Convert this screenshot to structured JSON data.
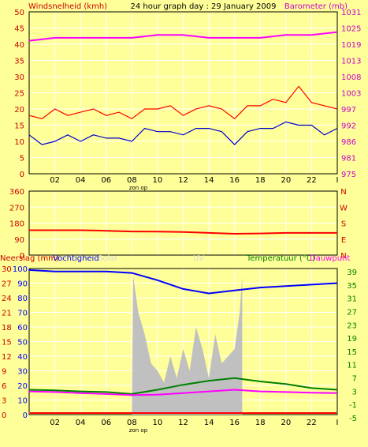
{
  "header": {
    "title": "24 hour graph day : 29 January 2009",
    "left_label": "Windsnelheid (kmh)",
    "right_label": "Barometer (mb)"
  },
  "colors": {
    "background": "#ffff99",
    "panel": "#ffff99",
    "grid": "#ffffff",
    "wind": "#ff0000",
    "wind_avg": "#0000cc",
    "barometer": "#ff00ff",
    "direction": "#ff0000",
    "humidity": "#0000ff",
    "temperature": "#008000",
    "dewpoint": "#ff00ff",
    "solar": "#c0c0c0",
    "rain": "#ff0000",
    "left_axis_text": "#cc0000",
    "right_axis_text": "#cc00cc",
    "temp_axis_text": "#008000"
  },
  "chart_data": [
    {
      "type": "line",
      "panel": "wind-barometer",
      "xlabel": "zon op",
      "x_ticks": [
        "02",
        "04",
        "06",
        "08",
        "10",
        "12",
        "14",
        "16",
        "18",
        "20",
        "22",
        "I"
      ],
      "y_left_ticks": [
        "0",
        "5",
        "10",
        "15",
        "20",
        "25",
        "30",
        "35",
        "40",
        "45",
        "50"
      ],
      "y_right_ticks": [
        "975",
        "981",
        "986",
        "992",
        "997",
        "1003",
        "1008",
        "1013",
        "1019",
        "1025",
        "1031"
      ],
      "ylim_left": [
        0,
        50
      ],
      "ylim_right": [
        975,
        1031
      ],
      "series": [
        {
          "name": "Windsnelheid (kmh)",
          "axis": "left",
          "x": [
            0,
            1,
            2,
            3,
            4,
            5,
            6,
            7,
            8,
            9,
            10,
            11,
            12,
            13,
            14,
            15,
            16,
            17,
            18,
            19,
            20,
            21,
            22,
            23,
            24
          ],
          "values": [
            18,
            17,
            20,
            18,
            19,
            20,
            18,
            19,
            17,
            20,
            20,
            21,
            18,
            20,
            21,
            20,
            17,
            21,
            21,
            23,
            22,
            27,
            22,
            21,
            20
          ]
        },
        {
          "name": "gemiddelde wind",
          "axis": "left",
          "x": [
            0,
            1,
            2,
            3,
            4,
            5,
            6,
            7,
            8,
            9,
            10,
            11,
            12,
            13,
            14,
            15,
            16,
            17,
            18,
            19,
            20,
            21,
            22,
            23,
            24
          ],
          "values": [
            12,
            9,
            10,
            12,
            10,
            12,
            11,
            11,
            10,
            14,
            13,
            13,
            12,
            14,
            14,
            13,
            9,
            13,
            14,
            14,
            16,
            15,
            15,
            12,
            14
          ]
        },
        {
          "name": "Barometer (mb)",
          "axis": "right",
          "x": [
            0,
            2,
            4,
            6,
            8,
            10,
            12,
            14,
            16,
            18,
            20,
            22,
            24
          ],
          "values": [
            1021,
            1022,
            1022,
            1022,
            1022,
            1023,
            1023,
            1022,
            1022,
            1022,
            1023,
            1023,
            1024
          ]
        }
      ]
    },
    {
      "type": "line",
      "panel": "wind-direction",
      "x_ticks": [
        "02",
        "04",
        "06",
        "08",
        "10",
        "12",
        "14",
        "16",
        "18",
        "20",
        "22",
        "I"
      ],
      "y_ticks": [
        "0",
        "90",
        "180",
        "270",
        "360"
      ],
      "right_labels": [
        "N",
        "W",
        "S",
        "E",
        "N"
      ],
      "ylim": [
        0,
        360
      ],
      "series": [
        {
          "name": "windrichting",
          "x": [
            0,
            2,
            4,
            6,
            8,
            10,
            12,
            14,
            16,
            18,
            20,
            22,
            24
          ],
          "values": [
            140,
            140,
            140,
            137,
            133,
            132,
            130,
            125,
            120,
            122,
            125,
            125,
            125
          ]
        }
      ]
    },
    {
      "type": "line",
      "panel": "rain-humidity-temp",
      "labels_top": [
        "Neerslag (mm)",
        "Vochtigheid",
        "Solar",
        "UV",
        "Temperatuur (°C)",
        "Dauwpunt"
      ],
      "xlabel": "zon op",
      "x_ticks": [
        "02",
        "04",
        "06",
        "08",
        "10",
        "12",
        "14",
        "16",
        "18",
        "20",
        "22",
        "I"
      ],
      "y_left_ticks": [
        "0",
        "3",
        "6",
        "9",
        "12",
        "15",
        "18",
        "21",
        "24",
        "27",
        "30"
      ],
      "y_mid_ticks": [
        "0",
        "10",
        "20",
        "30",
        "40",
        "50",
        "60",
        "70",
        "80",
        "90",
        "100"
      ],
      "y_right_ticks": [
        "-5",
        "-1",
        "3",
        "7",
        "11",
        "15",
        "19",
        "23",
        "27",
        "31",
        "35",
        "39"
      ],
      "ylim_humidity": [
        0,
        100
      ],
      "ylim_temp": [
        -5,
        39
      ],
      "series": [
        {
          "name": "Vochtigheid",
          "x": [
            0,
            2,
            4,
            6,
            8,
            10,
            12,
            14,
            16,
            18,
            20,
            22,
            24
          ],
          "values": [
            99,
            98,
            98,
            98,
            97,
            92,
            86,
            83,
            85,
            87,
            88,
            89,
            90
          ]
        },
        {
          "name": "Temperatuur (°C)",
          "x": [
            0,
            2,
            4,
            6,
            8,
            10,
            12,
            14,
            16,
            18,
            20,
            22,
            24
          ],
          "values": [
            2.5,
            2.3,
            2.0,
            1.8,
            1.2,
            2.5,
            4.0,
            5.2,
            6.0,
            5.0,
            4.2,
            3.0,
            2.5
          ]
        },
        {
          "name": "Dauwpunt",
          "x": [
            0,
            2,
            4,
            6,
            8,
            10,
            12,
            14,
            16,
            18,
            20,
            22,
            24
          ],
          "values": [
            2.0,
            1.8,
            1.5,
            1.2,
            0.9,
            1.0,
            1.5,
            2.0,
            2.5,
            2.0,
            1.8,
            1.6,
            1.5
          ]
        },
        {
          "name": "Solar",
          "x": [
            8.0,
            8.1,
            8.5,
            9,
            9.5,
            10,
            10.5,
            11,
            11.5,
            12,
            12.5,
            13,
            13.5,
            14,
            14.5,
            15,
            15.5,
            16,
            16.4,
            16.6
          ],
          "values": [
            0,
            95,
            70,
            55,
            35,
            30,
            22,
            40,
            25,
            45,
            30,
            60,
            45,
            25,
            55,
            35,
            40,
            45,
            70,
            95
          ]
        }
      ]
    }
  ]
}
